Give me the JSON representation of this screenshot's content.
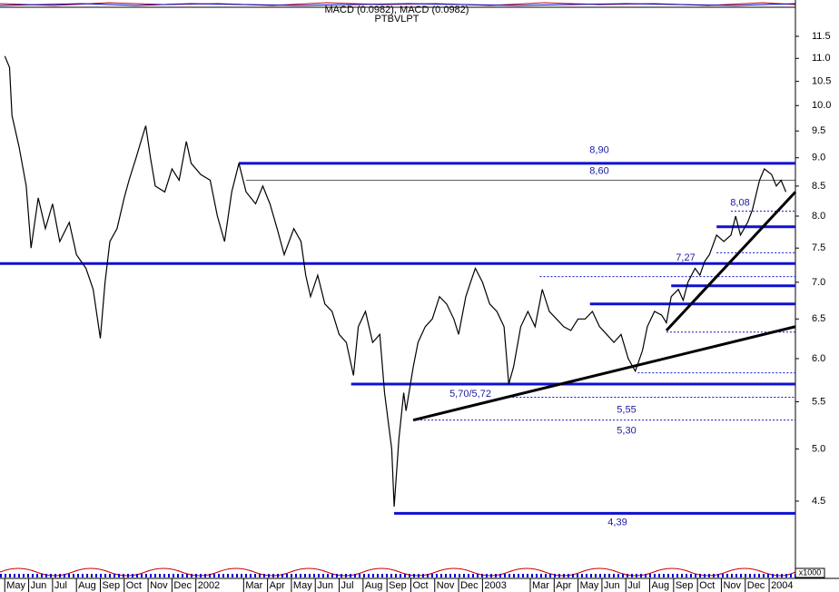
{
  "chart_data": {
    "type": "line",
    "title": "MACD (0.0982), MACD (0.0982)",
    "subtitle": "PTBVLPT",
    "unit_label": "x1000",
    "log_scale": true,
    "xlim": [
      -0.2,
      33.1
    ],
    "ylim": [
      3.9,
      12.15
    ],
    "xticks": [
      {
        "value": 0,
        "label": "May"
      },
      {
        "value": 1,
        "label": "Jun"
      },
      {
        "value": 2,
        "label": "Jul"
      },
      {
        "value": 3,
        "label": "Aug"
      },
      {
        "value": 4,
        "label": "Sep"
      },
      {
        "value": 5,
        "label": "Oct"
      },
      {
        "value": 6,
        "label": "Nov"
      },
      {
        "value": 7,
        "label": "Dec"
      },
      {
        "value": 8,
        "label": "2002"
      },
      {
        "value": 10,
        "label": "Mar"
      },
      {
        "value": 11,
        "label": "Apr"
      },
      {
        "value": 12,
        "label": "May"
      },
      {
        "value": 13,
        "label": "Jun"
      },
      {
        "value": 14,
        "label": "Jul"
      },
      {
        "value": 15,
        "label": "Aug"
      },
      {
        "value": 16,
        "label": "Sep"
      },
      {
        "value": 17,
        "label": "Oct"
      },
      {
        "value": 18,
        "label": "Nov"
      },
      {
        "value": 19,
        "label": "Dec"
      },
      {
        "value": 20,
        "label": "2003"
      },
      {
        "value": 22,
        "label": "Mar"
      },
      {
        "value": 23,
        "label": "Apr"
      },
      {
        "value": 24,
        "label": "May"
      },
      {
        "value": 25,
        "label": "Jun"
      },
      {
        "value": 26,
        "label": "Jul"
      },
      {
        "value": 27,
        "label": "Aug"
      },
      {
        "value": 28,
        "label": "Sep"
      },
      {
        "value": 29,
        "label": "Oct"
      },
      {
        "value": 30,
        "label": "Nov"
      },
      {
        "value": 31,
        "label": "Dec"
      },
      {
        "value": 32,
        "label": "2004"
      }
    ],
    "yticks": [
      11.5,
      {
        "value": 11,
        "label": "11.0"
      },
      10.5,
      {
        "value": 10,
        "label": "10.0"
      },
      9.5,
      {
        "value": 9,
        "label": "9.0"
      },
      8.5,
      {
        "value": 8,
        "label": "8.0"
      },
      7.5,
      {
        "value": 7,
        "label": "7.0"
      },
      6.5,
      {
        "value": 6,
        "label": "6.0"
      },
      5.5,
      {
        "value": 5,
        "label": "5.0"
      },
      4.5
    ],
    "series": [
      {
        "color": "#000000",
        "x": [
          0.0,
          0.2,
          0.3,
          0.6,
          0.9,
          1.1,
          1.4,
          1.7,
          2.0,
          2.3,
          2.7,
          3.0,
          3.4,
          3.7,
          4.0,
          4.2,
          4.4,
          4.7,
          5.0,
          5.2,
          5.5,
          5.7,
          5.9,
          6.1,
          6.3,
          6.7,
          7.0,
          7.3,
          7.6,
          7.8,
          8.2,
          8.6,
          8.9,
          9.2,
          9.5,
          9.8,
          10.1,
          10.5,
          10.8,
          11.1,
          11.4,
          11.7,
          12.1,
          12.4,
          12.6,
          12.8,
          13.1,
          13.4,
          13.7,
          14.0,
          14.3,
          14.6,
          14.8,
          15.1,
          15.4,
          15.7,
          15.9,
          16.2,
          16.3,
          16.5,
          16.7,
          16.8,
          17.1,
          17.3,
          17.6,
          17.9,
          18.2,
          18.5,
          18.8,
          19.0,
          19.3,
          19.5,
          19.7,
          20.0,
          20.3,
          20.6,
          20.9,
          21.1,
          21.3,
          21.6,
          21.9,
          22.2,
          22.5,
          22.8,
          23.1,
          23.4,
          23.7,
          24.0,
          24.3,
          24.6,
          24.9,
          25.2,
          25.5,
          25.8,
          26.1,
          26.4,
          26.7,
          26.9,
          27.2,
          27.5,
          27.7,
          27.9,
          28.2,
          28.4,
          28.6,
          28.9,
          29.1,
          29.3,
          29.5,
          29.8,
          30.1,
          30.4,
          30.6,
          30.8,
          31.1,
          31.3,
          31.6,
          31.8,
          32.1,
          32.3,
          32.5,
          32.7
        ],
        "values": [
          11.05,
          10.8,
          9.8,
          9.2,
          8.5,
          7.5,
          8.3,
          7.8,
          8.2,
          7.6,
          7.9,
          7.4,
          7.2,
          6.9,
          6.25,
          7.0,
          7.6,
          7.8,
          8.3,
          8.6,
          9.0,
          9.3,
          9.6,
          9.0,
          8.5,
          8.4,
          8.8,
          8.6,
          9.3,
          8.9,
          8.7,
          8.6,
          8.0,
          7.6,
          8.4,
          8.9,
          8.4,
          8.2,
          8.5,
          8.2,
          7.8,
          7.4,
          7.8,
          7.6,
          7.1,
          6.8,
          7.1,
          6.7,
          6.6,
          6.3,
          6.2,
          5.8,
          6.4,
          6.6,
          6.2,
          6.3,
          5.6,
          5.0,
          4.45,
          5.1,
          5.6,
          5.4,
          5.9,
          6.2,
          6.4,
          6.5,
          6.8,
          6.7,
          6.5,
          6.3,
          6.8,
          7.0,
          7.2,
          7.0,
          6.7,
          6.6,
          6.4,
          5.7,
          5.9,
          6.4,
          6.6,
          6.4,
          6.9,
          6.6,
          6.5,
          6.4,
          6.35,
          6.5,
          6.5,
          6.6,
          6.4,
          6.3,
          6.2,
          6.3,
          6.0,
          5.85,
          6.1,
          6.4,
          6.6,
          6.55,
          6.45,
          6.8,
          6.9,
          6.75,
          7.0,
          7.2,
          7.1,
          7.3,
          7.4,
          7.7,
          7.6,
          7.7,
          8.0,
          7.7,
          7.9,
          8.1,
          8.6,
          8.8,
          8.7,
          8.5,
          8.6,
          8.4
        ]
      }
    ],
    "levels": [
      {
        "value": 8.9,
        "start": 9.8,
        "style": "thick",
        "label": "8,90"
      },
      {
        "value": 8.6,
        "start": 10.1,
        "style": "thin",
        "label": "8,60"
      },
      {
        "value": 8.08,
        "start": 30.4,
        "style": "dotted",
        "label": "8,08"
      },
      {
        "value": 7.83,
        "start": 29.8,
        "style": "thick"
      },
      {
        "value": 7.43,
        "start": 29.8,
        "style": "dotted"
      },
      {
        "value": 7.27,
        "start": -0.2,
        "style": "thick",
        "label": "7,27"
      },
      {
        "value": 7.08,
        "start": 22.4,
        "style": "dotted"
      },
      {
        "value": 6.95,
        "start": 27.9,
        "style": "thick"
      },
      {
        "value": 6.7,
        "start": 24.5,
        "style": "thick"
      },
      {
        "value": 6.33,
        "start": 27.7,
        "style": "dotted"
      },
      {
        "value": 5.83,
        "start": 26.5,
        "style": "dotted"
      },
      {
        "value": 5.7,
        "start": 14.5,
        "style": "thick",
        "label": "5,70/5,72"
      },
      {
        "value": 5.55,
        "start": 21.1,
        "style": "dotted",
        "label": "5,55"
      },
      {
        "value": 5.3,
        "start": 17.1,
        "style": "dotted",
        "label": "5,30"
      },
      {
        "value": 4.39,
        "start": 16.3,
        "style": "thick",
        "label": "4,39"
      }
    ],
    "trendlines": [
      {
        "x": [
          17.1,
          33.1
        ],
        "y": [
          5.3,
          6.4
        ]
      },
      {
        "x": [
          27.7,
          33.1
        ],
        "y": [
          6.35,
          8.4
        ]
      }
    ]
  }
}
